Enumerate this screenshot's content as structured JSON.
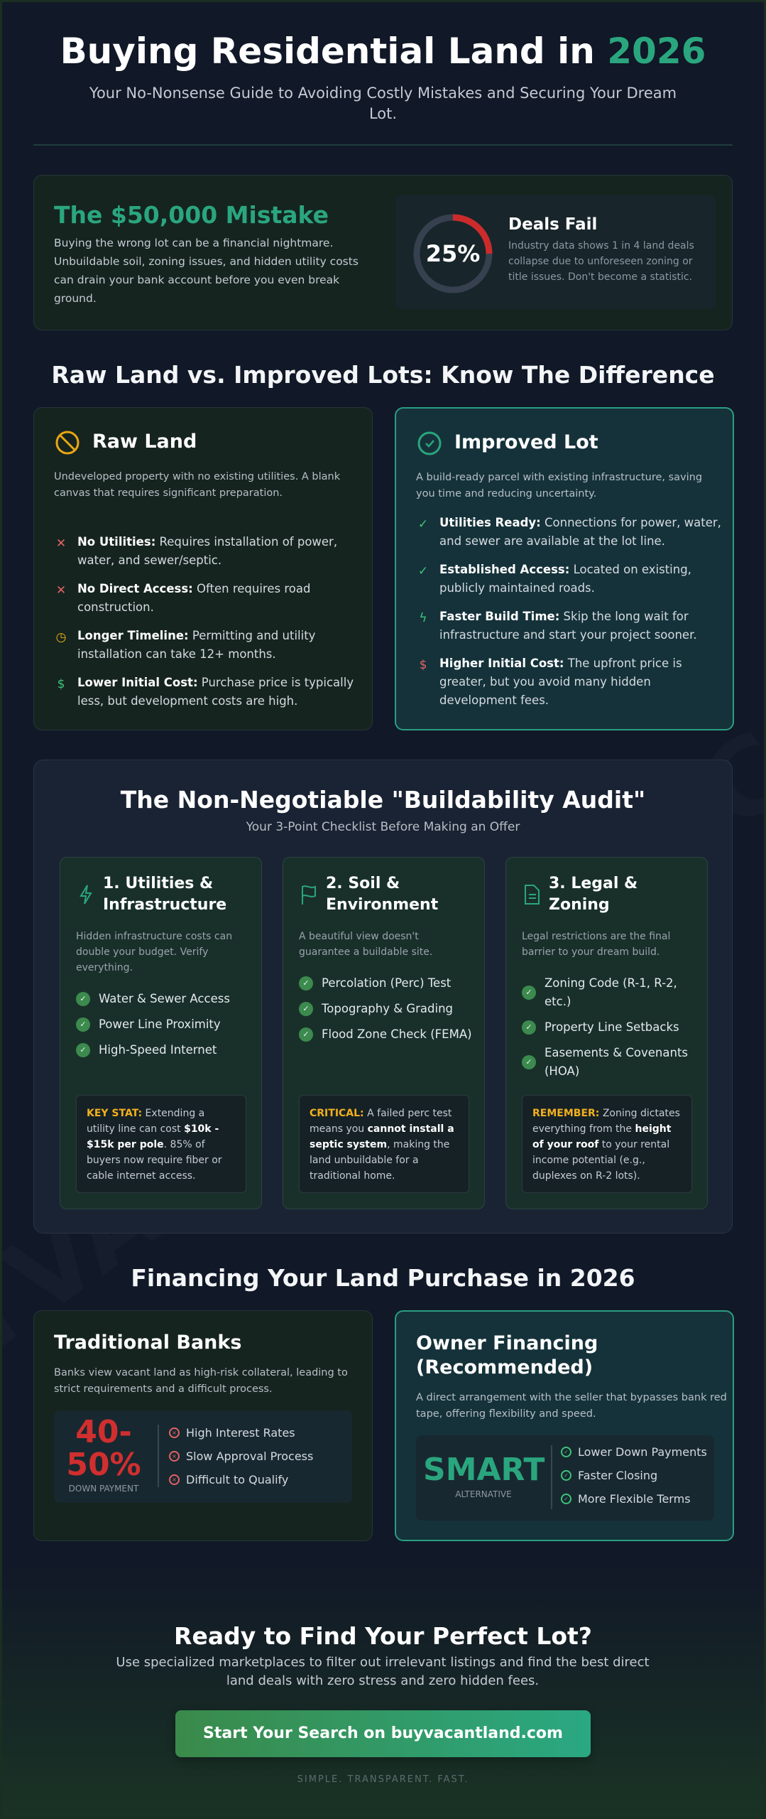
{
  "header": {
    "title": "Buying Residential Land in ",
    "title_accent": "2026",
    "subtitle": "Your No-Nonsense Guide to Avoiding Costly Mistakes and Securing Your Dream Lot."
  },
  "watermark": "BUYVACANTLAND.COM",
  "mistake": {
    "title": "The $50,000 Mistake",
    "body": "Buying the wrong lot can be a financial nightmare. Unbuildable soil, zoning issues, and hidden utility costs can drain your bank account before you even break ground.",
    "stat_value": "25%",
    "stat_percent": 25,
    "stat_title": "Deals Fail",
    "stat_body": "Industry data shows 1 in 4 land deals collapse due to unforeseen zoning or title issues. Don't become a statistic."
  },
  "comparison": {
    "heading": "Raw Land vs. Improved Lots: Know The Difference",
    "raw": {
      "title": "Raw Land",
      "icon": "ban-icon",
      "desc": "Undeveloped property with no existing utilities. A blank canvas that requires significant preparation.",
      "items": [
        {
          "icon": "x-icon",
          "bold": "No Utilities:",
          "text": " Requires installation of power, water, and sewer/septic."
        },
        {
          "icon": "x-icon",
          "bold": "No Direct Access:",
          "text": " Often requires road construction."
        },
        {
          "icon": "clock-icon",
          "bold": "Longer Timeline:",
          "text": " Permitting and utility installation can take 12+ months."
        },
        {
          "icon": "dollar-icon",
          "bold": "Lower Initial Cost:",
          "text": " Purchase price is typically less, but development costs are high."
        }
      ]
    },
    "improved": {
      "title": "Improved Lot",
      "icon": "check-circle-icon",
      "desc": "A build-ready parcel with existing infrastructure, saving you time and reducing uncertainty.",
      "items": [
        {
          "icon": "check-icon",
          "bold": "Utilities Ready:",
          "text": " Connections for power, water, and sewer are available at the lot line."
        },
        {
          "icon": "check-icon",
          "bold": "Established Access:",
          "text": " Located on existing, publicly maintained roads."
        },
        {
          "icon": "bolt-icon",
          "bold": "Faster Build Time:",
          "text": " Skip the long wait for infrastructure and start your project sooner."
        },
        {
          "icon": "dollar-icon",
          "bold": "Higher Initial Cost:",
          "text": " The upfront price is greater, but you avoid many hidden development fees."
        }
      ]
    }
  },
  "audit": {
    "title": "The Non-Negotiable \"Buildability Audit\"",
    "subtitle": "Your 3-Point Checklist Before Making an Offer",
    "cards": [
      {
        "icon": "bolt-icon",
        "title": "1. Utilities & Infrastructure",
        "desc": "Hidden infrastructure costs can double your budget. Verify everything.",
        "items": [
          "Water & Sewer Access",
          "Power Line Proximity",
          "High-Speed Internet"
        ],
        "note_key": "KEY STAT:",
        "note_a": " Extending a utility line can cost ",
        "note_b": "$10k - $15k per pole",
        "note_c": ". 85% of buyers now require fiber or cable internet access."
      },
      {
        "icon": "flag-icon",
        "title": "2. Soil & Environment",
        "desc": "A beautiful view doesn't guarantee a buildable site.",
        "items": [
          "Percolation (Perc) Test",
          "Topography & Grading",
          "Flood Zone Check (FEMA)"
        ],
        "note_key": "CRITICAL:",
        "note_a": " A failed perc test means you ",
        "note_b": "cannot install a septic system",
        "note_c": ", making the land unbuildable for a traditional home."
      },
      {
        "icon": "document-icon",
        "title": "3. Legal & Zoning",
        "desc": "Legal restrictions are the final barrier to your dream build.",
        "items": [
          "Zoning Code (R-1, R-2, etc.)",
          "Property Line Setbacks",
          "Easements & Covenants (HOA)"
        ],
        "note_key": "REMEMBER:",
        "note_a": " Zoning dictates everything from the ",
        "note_b": "height of your roof",
        "note_c": " to your rental income potential (e.g., duplexes on R-2 lots)."
      }
    ]
  },
  "financing": {
    "heading": "Financing Your Land Purchase in 2026",
    "banks": {
      "title": "Traditional Banks",
      "desc": "Banks view vacant land as high-risk collateral, leading to strict requirements and a difficult process.",
      "big_line1": "40-",
      "big_line2": "50%",
      "big_label": "DOWN PAYMENT",
      "items": [
        "High Interest Rates",
        "Slow Approval Process",
        "Difficult to Qualify"
      ]
    },
    "owner": {
      "title": "Owner Financing (Recommended)",
      "desc": "A direct arrangement with the seller that bypasses bank red tape, offering flexibility and speed.",
      "big": "SMART",
      "big_label": "ALTERNATIVE",
      "items": [
        "Lower Down Payments",
        "Faster Closing",
        "More Flexible Terms"
      ]
    }
  },
  "cta": {
    "title": "Ready to Find Your Perfect Lot?",
    "subtitle": "Use specialized marketplaces to filter out irrelevant listings and find the best direct land deals with zero stress and zero hidden fees.",
    "button": "Start Your Search on buyvacantland.com",
    "tagline": "SIMPLE. TRANSPARENT. FAST."
  },
  "colors": {
    "accent": "#2aa67e",
    "danger": "#d12f2f",
    "warning": "#f2b01e",
    "background": "#111827"
  }
}
